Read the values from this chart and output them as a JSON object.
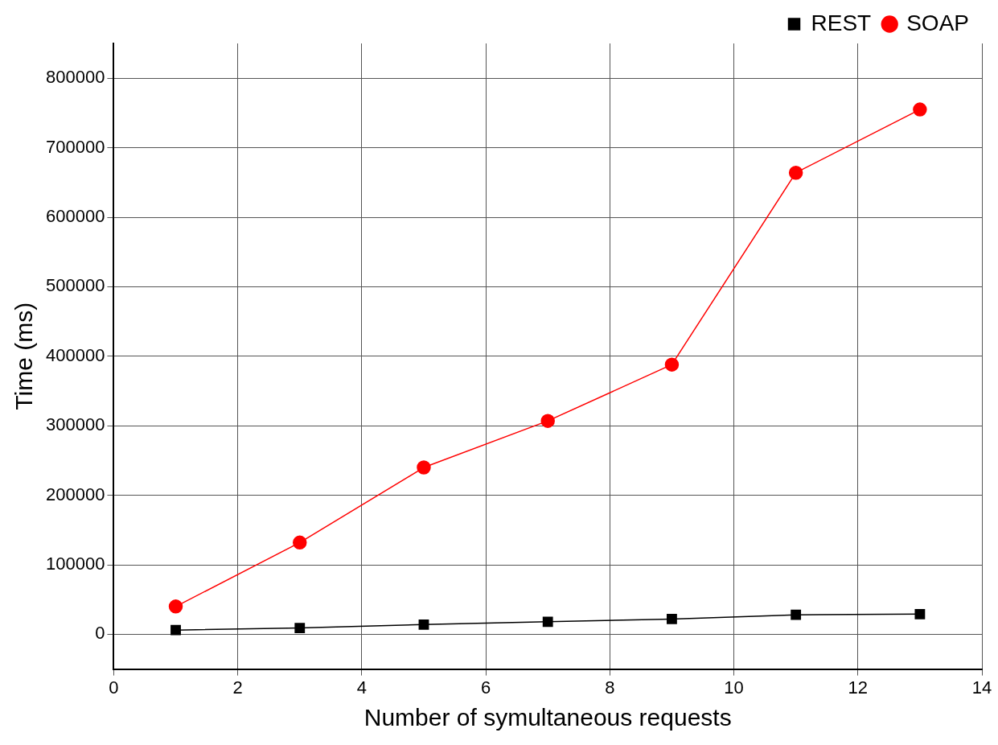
{
  "chart_data": {
    "type": "line",
    "xlabel": "Number of symultaneous requests",
    "ylabel": "Time (ms)",
    "x": [
      1,
      3,
      5,
      7,
      9,
      11,
      13
    ],
    "series": [
      {
        "name": "REST",
        "color": "#000000",
        "marker": "square",
        "values": [
          6000,
          9000,
          14000,
          18000,
          22000,
          28000,
          29000
        ]
      },
      {
        "name": "SOAP",
        "color": "#ff0000",
        "marker": "circle",
        "values": [
          40000,
          132000,
          240000,
          307000,
          388000,
          664000,
          755000
        ]
      }
    ],
    "xlim": [
      0,
      14
    ],
    "xticks": [
      0,
      2,
      4,
      6,
      8,
      10,
      12,
      14
    ],
    "ylim": [
      -50000,
      850000
    ],
    "yticks": [
      0,
      100000,
      200000,
      300000,
      400000,
      500000,
      600000,
      700000,
      800000
    ],
    "grid": true,
    "legend": "top right",
    "line_style": "solid"
  }
}
